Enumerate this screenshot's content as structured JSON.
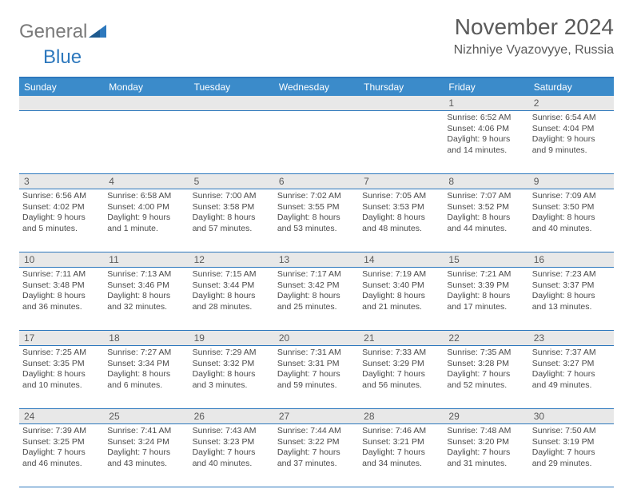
{
  "logo": {
    "general": "General",
    "blue": "Blue"
  },
  "header": {
    "month_title": "November 2024",
    "location": "Nizhniye Vyazovyye, Russia"
  },
  "colors": {
    "brand_blue": "#2d78bd",
    "header_blue": "#3b8bca",
    "stripe_gray": "#e8e8e8",
    "border_blue": "#2d78bd",
    "text_gray": "#5a5a5a"
  },
  "weekdays": [
    "Sunday",
    "Monday",
    "Tuesday",
    "Wednesday",
    "Thursday",
    "Friday",
    "Saturday"
  ],
  "weeks": [
    [
      {
        "d": "",
        "sr": "",
        "ss": "",
        "dl": ""
      },
      {
        "d": "",
        "sr": "",
        "ss": "",
        "dl": ""
      },
      {
        "d": "",
        "sr": "",
        "ss": "",
        "dl": ""
      },
      {
        "d": "",
        "sr": "",
        "ss": "",
        "dl": ""
      },
      {
        "d": "",
        "sr": "",
        "ss": "",
        "dl": ""
      },
      {
        "d": "1",
        "sr": "Sunrise: 6:52 AM",
        "ss": "Sunset: 4:06 PM",
        "dl": "Daylight: 9 hours and 14 minutes."
      },
      {
        "d": "2",
        "sr": "Sunrise: 6:54 AM",
        "ss": "Sunset: 4:04 PM",
        "dl": "Daylight: 9 hours and 9 minutes."
      }
    ],
    [
      {
        "d": "3",
        "sr": "Sunrise: 6:56 AM",
        "ss": "Sunset: 4:02 PM",
        "dl": "Daylight: 9 hours and 5 minutes."
      },
      {
        "d": "4",
        "sr": "Sunrise: 6:58 AM",
        "ss": "Sunset: 4:00 PM",
        "dl": "Daylight: 9 hours and 1 minute."
      },
      {
        "d": "5",
        "sr": "Sunrise: 7:00 AM",
        "ss": "Sunset: 3:58 PM",
        "dl": "Daylight: 8 hours and 57 minutes."
      },
      {
        "d": "6",
        "sr": "Sunrise: 7:02 AM",
        "ss": "Sunset: 3:55 PM",
        "dl": "Daylight: 8 hours and 53 minutes."
      },
      {
        "d": "7",
        "sr": "Sunrise: 7:05 AM",
        "ss": "Sunset: 3:53 PM",
        "dl": "Daylight: 8 hours and 48 minutes."
      },
      {
        "d": "8",
        "sr": "Sunrise: 7:07 AM",
        "ss": "Sunset: 3:52 PM",
        "dl": "Daylight: 8 hours and 44 minutes."
      },
      {
        "d": "9",
        "sr": "Sunrise: 7:09 AM",
        "ss": "Sunset: 3:50 PM",
        "dl": "Daylight: 8 hours and 40 minutes."
      }
    ],
    [
      {
        "d": "10",
        "sr": "Sunrise: 7:11 AM",
        "ss": "Sunset: 3:48 PM",
        "dl": "Daylight: 8 hours and 36 minutes."
      },
      {
        "d": "11",
        "sr": "Sunrise: 7:13 AM",
        "ss": "Sunset: 3:46 PM",
        "dl": "Daylight: 8 hours and 32 minutes."
      },
      {
        "d": "12",
        "sr": "Sunrise: 7:15 AM",
        "ss": "Sunset: 3:44 PM",
        "dl": "Daylight: 8 hours and 28 minutes."
      },
      {
        "d": "13",
        "sr": "Sunrise: 7:17 AM",
        "ss": "Sunset: 3:42 PM",
        "dl": "Daylight: 8 hours and 25 minutes."
      },
      {
        "d": "14",
        "sr": "Sunrise: 7:19 AM",
        "ss": "Sunset: 3:40 PM",
        "dl": "Daylight: 8 hours and 21 minutes."
      },
      {
        "d": "15",
        "sr": "Sunrise: 7:21 AM",
        "ss": "Sunset: 3:39 PM",
        "dl": "Daylight: 8 hours and 17 minutes."
      },
      {
        "d": "16",
        "sr": "Sunrise: 7:23 AM",
        "ss": "Sunset: 3:37 PM",
        "dl": "Daylight: 8 hours and 13 minutes."
      }
    ],
    [
      {
        "d": "17",
        "sr": "Sunrise: 7:25 AM",
        "ss": "Sunset: 3:35 PM",
        "dl": "Daylight: 8 hours and 10 minutes."
      },
      {
        "d": "18",
        "sr": "Sunrise: 7:27 AM",
        "ss": "Sunset: 3:34 PM",
        "dl": "Daylight: 8 hours and 6 minutes."
      },
      {
        "d": "19",
        "sr": "Sunrise: 7:29 AM",
        "ss": "Sunset: 3:32 PM",
        "dl": "Daylight: 8 hours and 3 minutes."
      },
      {
        "d": "20",
        "sr": "Sunrise: 7:31 AM",
        "ss": "Sunset: 3:31 PM",
        "dl": "Daylight: 7 hours and 59 minutes."
      },
      {
        "d": "21",
        "sr": "Sunrise: 7:33 AM",
        "ss": "Sunset: 3:29 PM",
        "dl": "Daylight: 7 hours and 56 minutes."
      },
      {
        "d": "22",
        "sr": "Sunrise: 7:35 AM",
        "ss": "Sunset: 3:28 PM",
        "dl": "Daylight: 7 hours and 52 minutes."
      },
      {
        "d": "23",
        "sr": "Sunrise: 7:37 AM",
        "ss": "Sunset: 3:27 PM",
        "dl": "Daylight: 7 hours and 49 minutes."
      }
    ],
    [
      {
        "d": "24",
        "sr": "Sunrise: 7:39 AM",
        "ss": "Sunset: 3:25 PM",
        "dl": "Daylight: 7 hours and 46 minutes."
      },
      {
        "d": "25",
        "sr": "Sunrise: 7:41 AM",
        "ss": "Sunset: 3:24 PM",
        "dl": "Daylight: 7 hours and 43 minutes."
      },
      {
        "d": "26",
        "sr": "Sunrise: 7:43 AM",
        "ss": "Sunset: 3:23 PM",
        "dl": "Daylight: 7 hours and 40 minutes."
      },
      {
        "d": "27",
        "sr": "Sunrise: 7:44 AM",
        "ss": "Sunset: 3:22 PM",
        "dl": "Daylight: 7 hours and 37 minutes."
      },
      {
        "d": "28",
        "sr": "Sunrise: 7:46 AM",
        "ss": "Sunset: 3:21 PM",
        "dl": "Daylight: 7 hours and 34 minutes."
      },
      {
        "d": "29",
        "sr": "Sunrise: 7:48 AM",
        "ss": "Sunset: 3:20 PM",
        "dl": "Daylight: 7 hours and 31 minutes."
      },
      {
        "d": "30",
        "sr": "Sunrise: 7:50 AM",
        "ss": "Sunset: 3:19 PM",
        "dl": "Daylight: 7 hours and 29 minutes."
      }
    ]
  ]
}
